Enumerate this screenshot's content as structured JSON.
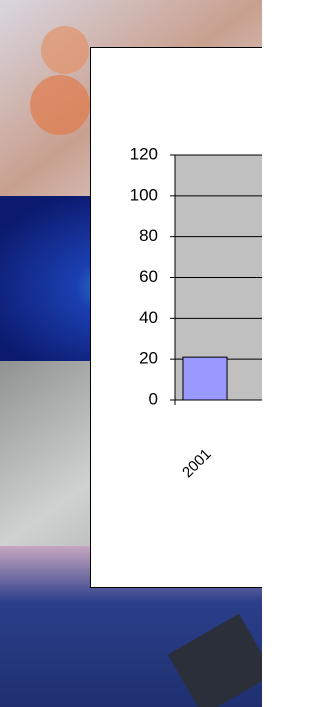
{
  "chart_data": {
    "type": "bar",
    "categories": [
      "2001"
    ],
    "values": [
      21
    ],
    "color": "#9999ff",
    "ylim": [
      0,
      120
    ],
    "yticks": [
      0,
      20,
      40,
      60,
      80,
      100,
      120
    ],
    "grid": true
  }
}
